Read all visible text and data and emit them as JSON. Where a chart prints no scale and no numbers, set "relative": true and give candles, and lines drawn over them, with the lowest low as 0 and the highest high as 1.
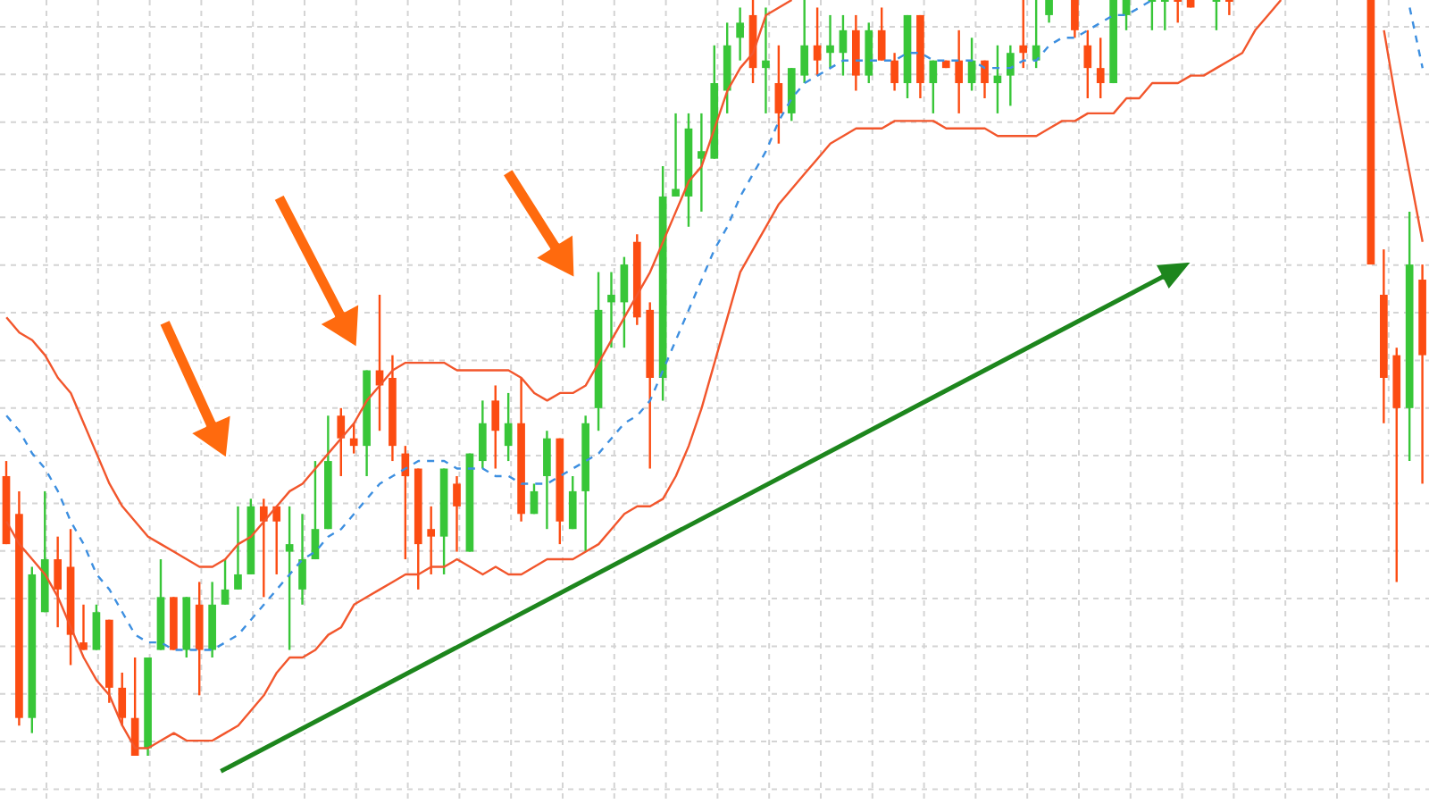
{
  "chart_data": {
    "type": "candlestick",
    "relative": true,
    "grid": true,
    "marker": "none",
    "categories": [
      null,
      null,
      null,
      null,
      null,
      null,
      null,
      null,
      null,
      null,
      null,
      null,
      null,
      null,
      null,
      null,
      null,
      null,
      null,
      null,
      null,
      null,
      null,
      null,
      null,
      null,
      null,
      null,
      null,
      null,
      null,
      null,
      null,
      null,
      null,
      null,
      null,
      null,
      null,
      null,
      null,
      null,
      null,
      null,
      null,
      null,
      null,
      null,
      null,
      null,
      null,
      null,
      null,
      null,
      null,
      null,
      null,
      null,
      null,
      null,
      null,
      null,
      null,
      null,
      null,
      null,
      null,
      null,
      null,
      null,
      null,
      null,
      null,
      null,
      null,
      null,
      null,
      null,
      null,
      null,
      null,
      null,
      null,
      null,
      null,
      null,
      null,
      null,
      null,
      null,
      null,
      null,
      null,
      null,
      null,
      null,
      null,
      null,
      null,
      null,
      null,
      null,
      null,
      null,
      null,
      null,
      null,
      null,
      null,
      null,
      null
    ],
    "ohlc": [
      [
        0.37,
        0.39,
        0.28,
        0.28
      ],
      [
        0.32,
        0.35,
        0.04,
        0.05
      ],
      [
        0.05,
        0.25,
        0.03,
        0.24
      ],
      [
        0.19,
        0.35,
        0.19,
        0.26
      ],
      [
        0.26,
        0.29,
        0.17,
        0.22
      ],
      [
        0.25,
        0.3,
        0.12,
        0.16
      ],
      [
        0.15,
        0.2,
        0.14,
        0.14
      ],
      [
        0.14,
        0.2,
        0.14,
        0.19
      ],
      [
        0.18,
        0.18,
        0.07,
        0.09
      ],
      [
        0.09,
        0.11,
        0.04,
        0.05
      ],
      [
        0.05,
        0.13,
        0,
        0
      ],
      [
        0.01,
        0.13,
        0,
        0.13
      ],
      [
        0.14,
        0.26,
        0.14,
        0.21
      ],
      [
        0.21,
        0.21,
        0.14,
        0.14
      ],
      [
        0.14,
        0.21,
        0.13,
        0.21
      ],
      [
        0.2,
        0.23,
        0.08,
        0.14
      ],
      [
        0.14,
        0.23,
        0.13,
        0.2
      ],
      [
        0.2,
        0.26,
        0.2,
        0.22
      ],
      [
        0.22,
        0.33,
        0.22,
        0.24
      ],
      [
        0.24,
        0.34,
        0.24,
        0.33
      ],
      [
        0.33,
        0.34,
        0.21,
        0.31
      ],
      [
        0.33,
        0.33,
        0.24,
        0.31
      ],
      [
        0.27,
        0.33,
        0.14,
        0.28
      ],
      [
        0.22,
        0.32,
        0.2,
        0.26
      ],
      [
        0.26,
        0.39,
        0.26,
        0.3
      ],
      [
        0.3,
        0.45,
        0.3,
        0.39
      ],
      [
        0.45,
        0.46,
        0.37,
        0.42
      ],
      [
        0.42,
        0.44,
        0.4,
        0.41
      ],
      [
        0.41,
        0.51,
        0.37,
        0.51
      ],
      [
        0.51,
        0.61,
        0.43,
        0.49
      ],
      [
        0.5,
        0.53,
        0.39,
        0.41
      ],
      [
        0.4,
        0.41,
        0.26,
        0.37
      ],
      [
        0.38,
        0.38,
        0.22,
        0.28
      ],
      [
        0.3,
        0.33,
        0.24,
        0.29
      ],
      [
        0.29,
        0.38,
        0.24,
        0.38
      ],
      [
        0.36,
        0.37,
        0.27,
        0.33
      ],
      [
        0.27,
        0.4,
        0.27,
        0.4
      ],
      [
        0.39,
        0.47,
        0.38,
        0.44
      ],
      [
        0.47,
        0.49,
        0.38,
        0.43
      ],
      [
        0.41,
        0.48,
        0.39,
        0.44
      ],
      [
        0.44,
        0.5,
        0.31,
        0.32
      ],
      [
        0.32,
        0.36,
        0.32,
        0.35
      ],
      [
        0.37,
        0.43,
        0.3,
        0.42
      ],
      [
        0.42,
        0.42,
        0.28,
        0.31
      ],
      [
        0.3,
        0.37,
        0.3,
        0.35
      ],
      [
        0.35,
        0.45,
        0.27,
        0.44
      ],
      [
        0.46,
        0.64,
        0.43,
        0.59
      ],
      [
        0.6,
        0.64,
        0.54,
        0.61
      ],
      [
        0.6,
        0.66,
        0.54,
        0.65
      ],
      [
        0.68,
        0.69,
        0.57,
        0.58
      ],
      [
        0.59,
        0.6,
        0.38,
        0.5
      ],
      [
        0.5,
        0.78,
        0.47,
        0.74
      ],
      [
        0.74,
        0.85,
        0.74,
        0.75
      ],
      [
        0.74,
        0.85,
        0.7,
        0.83
      ],
      [
        0.79,
        0.85,
        0.72,
        0.8
      ],
      [
        0.79,
        0.94,
        0.79,
        0.89
      ],
      [
        0.88,
        0.97,
        0.85,
        0.94
      ],
      [
        0.95,
        0.99,
        0.92,
        0.97
      ],
      [
        0.98,
        1,
        0.89,
        0.91
      ],
      [
        0.91,
        0.99,
        0.85,
        0.92
      ],
      [
        0.89,
        0.94,
        0.81,
        0.85
      ],
      [
        0.85,
        0.91,
        0.84,
        0.91
      ],
      [
        0.9,
        1,
        0.89,
        0.94
      ],
      [
        0.94,
        0.99,
        0.9,
        0.92
      ],
      [
        0.93,
        0.98,
        0.91,
        0.94
      ],
      [
        0.93,
        0.98,
        0.9,
        0.96
      ],
      [
        0.96,
        0.98,
        0.88,
        0.9
      ],
      [
        0.9,
        0.97,
        0.89,
        0.96
      ],
      [
        0.96,
        0.99,
        0.92,
        0.92
      ],
      [
        0.92,
        0.93,
        0.88,
        0.89
      ],
      [
        0.89,
        0.98,
        0.87,
        0.98
      ],
      [
        0.98,
        0.98,
        0.87,
        0.89
      ],
      [
        0.89,
        0.92,
        0.85,
        0.92
      ],
      [
        0.92,
        0.92,
        0.91,
        0.91
      ],
      [
        0.92,
        0.96,
        0.85,
        0.89
      ],
      [
        0.89,
        0.95,
        0.88,
        0.92
      ],
      [
        0.92,
        0.92,
        0.87,
        0.89
      ],
      [
        0.89,
        0.94,
        0.85,
        0.9
      ],
      [
        0.9,
        0.94,
        0.86,
        0.93
      ],
      [
        0.94,
        1,
        0.91,
        0.93
      ],
      [
        0.92,
        1,
        0.91,
        0.94
      ],
      [
        0.98,
        1,
        0.97,
        1
      ],
      null,
      [
        1,
        1,
        0.95,
        0.96
      ],
      [
        0.94,
        0.96,
        0.87,
        0.91
      ],
      [
        0.91,
        0.95,
        0.87,
        0.89
      ],
      [
        0.89,
        1,
        0.89,
        1
      ],
      [
        0.98,
        1,
        0.96,
        1
      ],
      null,
      [
        1,
        1,
        0.96,
        1
      ],
      [
        1,
        1,
        0.96,
        1
      ],
      [
        1,
        1,
        0.97,
        1
      ],
      [
        1,
        1,
        0.99,
        0.99
      ],
      null,
      [
        1,
        1,
        0.96,
        1
      ],
      [
        1,
        1,
        0.98,
        1
      ],
      null,
      null,
      null,
      null,
      null,
      null,
      null,
      null,
      null,
      null,
      [
        1,
        1,
        0.65,
        0.65
      ],
      [
        0.61,
        0.67,
        0.44,
        0.5
      ],
      [
        0.53,
        0.54,
        0.23,
        0.46
      ],
      [
        0.46,
        0.72,
        0.39,
        0.65
      ],
      [
        0.63,
        0.65,
        0.36,
        0.53
      ]
    ],
    "colors": [
      "#fc4c12",
      "#fc4c12",
      "#38c638",
      "#38c638",
      "#fc4c12",
      "#fc4c12",
      "#fc4c12",
      "#38c638",
      "#fc4c12",
      "#fc4c12",
      "#fc4c12",
      "#38c638",
      "#38c638",
      "#fc4c12",
      "#38c638",
      "#fc4c12",
      "#38c638",
      "#38c638",
      "#38c638",
      "#38c638",
      "#fc4c12",
      "#fc4c12",
      "#38c638",
      "#38c638",
      "#38c638",
      "#38c638",
      "#fc4c12",
      "#fc4c12",
      "#38c638",
      "#fc4c12",
      "#fc4c12",
      "#fc4c12",
      "#fc4c12",
      "#fc4c12",
      "#38c638",
      "#fc4c12",
      "#38c638",
      "#38c638",
      "#fc4c12",
      "#38c638",
      "#fc4c12",
      "#38c638",
      "#38c638",
      "#fc4c12",
      "#38c638",
      "#38c638",
      "#38c638",
      "#38c638",
      "#38c638",
      "#fc4c12",
      "#fc4c12",
      "#38c638",
      "#38c638",
      "#38c638",
      "#38c638",
      "#38c638",
      "#38c638",
      "#38c638",
      "#fc4c12",
      "#38c638",
      "#fc4c12",
      "#38c638",
      "#38c638",
      "#fc4c12",
      "#38c638",
      "#38c638",
      "#fc4c12",
      "#38c638",
      "#fc4c12",
      "#fc4c12",
      "#38c638",
      "#fc4c12",
      "#38c638",
      "#fc4c12",
      "#fc4c12",
      "#38c638",
      "#fc4c12",
      "#38c638",
      "#38c638",
      "#fc4c12",
      "#38c638",
      "#38c638",
      null,
      "#fc4c12",
      "#fc4c12",
      "#fc4c12",
      "#38c638",
      "#38c638",
      null,
      "#38c638",
      "#38c638",
      "#fc4c12",
      "#fc4c12",
      null,
      "#38c638",
      "#fc4c12",
      null,
      null,
      null,
      null,
      null,
      null,
      null,
      null,
      null,
      null,
      "#fc4c12",
      "#fc4c12",
      "#fc4c12",
      "#38c638",
      "#fc4c12"
    ],
    "series": [
      {
        "type": "line",
        "color": "#f2562c",
        "values": [
          0.58,
          0.56,
          0.55,
          0.53,
          0.5,
          0.48,
          0.44,
          0.4,
          0.36,
          0.33,
          0.31,
          0.29,
          0.28,
          0.27,
          0.26,
          0.25,
          0.25,
          0.26,
          0.28,
          0.29,
          0.31,
          0.33,
          0.35,
          0.36,
          0.38,
          0.4,
          0.42,
          0.44,
          0.47,
          0.49,
          0.51,
          0.52,
          0.52,
          0.52,
          0.52,
          0.51,
          0.51,
          0.51,
          0.51,
          0.51,
          0.5,
          0.48,
          0.47,
          0.48,
          0.48,
          0.49,
          0.52,
          0.55,
          0.58,
          0.61,
          0.64,
          0.68,
          0.72,
          0.76,
          0.78,
          0.83,
          0.88,
          0.91,
          0.93,
          0.98,
          0.99,
          1,
          null,
          null,
          null,
          null,
          null,
          null,
          null,
          null,
          null,
          null,
          null,
          null,
          null,
          null,
          null,
          null,
          null,
          null,
          null,
          null,
          null,
          null,
          null,
          null,
          null,
          null,
          null,
          null,
          null,
          null,
          null,
          null,
          null,
          null,
          null,
          null,
          null,
          null,
          null,
          null,
          null,
          null,
          null,
          null,
          null,
          null,
          null,
          null,
          null
        ]
      },
      {
        "type": "line",
        "color": "#3d8fe0",
        "line_style": "dashed",
        "values": [
          0.45,
          0.43,
          0.4,
          0.38,
          0.35,
          0.31,
          0.28,
          0.24,
          0.22,
          0.19,
          0.16,
          0.15,
          0.15,
          0.14,
          0.14,
          0.14,
          0.14,
          0.15,
          0.16,
          0.18,
          0.2,
          0.22,
          0.24,
          0.26,
          0.27,
          0.29,
          0.3,
          0.32,
          0.34,
          0.36,
          0.37,
          0.38,
          0.39,
          0.39,
          0.39,
          0.38,
          0.38,
          0.38,
          0.37,
          0.37,
          0.36,
          0.36,
          0.36,
          0.37,
          0.38,
          0.39,
          0.4,
          0.42,
          0.44,
          0.45,
          0.47,
          0.51,
          0.55,
          0.59,
          0.63,
          0.67,
          0.7,
          0.74,
          0.77,
          0.8,
          0.84,
          0.87,
          0.89,
          0.9,
          0.91,
          0.92,
          0.92,
          0.92,
          0.92,
          0.92,
          0.93,
          0.93,
          0.92,
          0.92,
          0.92,
          0.92,
          0.91,
          0.91,
          0.91,
          0.92,
          0.92,
          0.94,
          0.95,
          0.95,
          0.96,
          0.97,
          0.98,
          0.98,
          0.99,
          1,
          null,
          null,
          null,
          null,
          null,
          null,
          null,
          null,
          null,
          null,
          null,
          null,
          null,
          null,
          null,
          null,
          null,
          null,
          null,
          0.99,
          0.91
        ]
      },
      {
        "type": "line",
        "color": "#f2562c",
        "values": [
          0.31,
          0.28,
          0.26,
          0.24,
          0.21,
          0.17,
          0.13,
          0.1,
          0.08,
          0.04,
          0.01,
          0.01,
          0.02,
          0.03,
          0.02,
          0.02,
          0.02,
          0.03,
          0.04,
          0.06,
          0.08,
          0.11,
          0.13,
          0.13,
          0.14,
          0.16,
          0.17,
          0.2,
          0.21,
          0.22,
          0.23,
          0.24,
          0.24,
          0.25,
          0.25,
          0.26,
          0.25,
          0.24,
          0.25,
          0.24,
          0.24,
          0.25,
          0.26,
          0.26,
          0.26,
          0.27,
          0.28,
          0.3,
          0.32,
          0.33,
          0.33,
          0.34,
          0.37,
          0.41,
          0.46,
          0.52,
          0.58,
          0.64,
          0.67,
          0.7,
          0.73,
          0.75,
          0.77,
          0.79,
          0.81,
          0.82,
          0.83,
          0.83,
          0.83,
          0.84,
          0.84,
          0.84,
          0.84,
          0.83,
          0.83,
          0.83,
          0.83,
          0.82,
          0.82,
          0.82,
          0.82,
          0.83,
          0.84,
          0.84,
          0.85,
          0.85,
          0.85,
          0.87,
          0.87,
          0.89,
          0.89,
          0.89,
          0.9,
          0.9,
          0.91,
          0.92,
          0.93,
          0.96,
          0.98,
          1,
          null,
          null,
          null,
          null,
          null,
          null,
          null,
          0.96,
          0.86,
          0.77,
          0.68
        ]
      }
    ]
  }
}
